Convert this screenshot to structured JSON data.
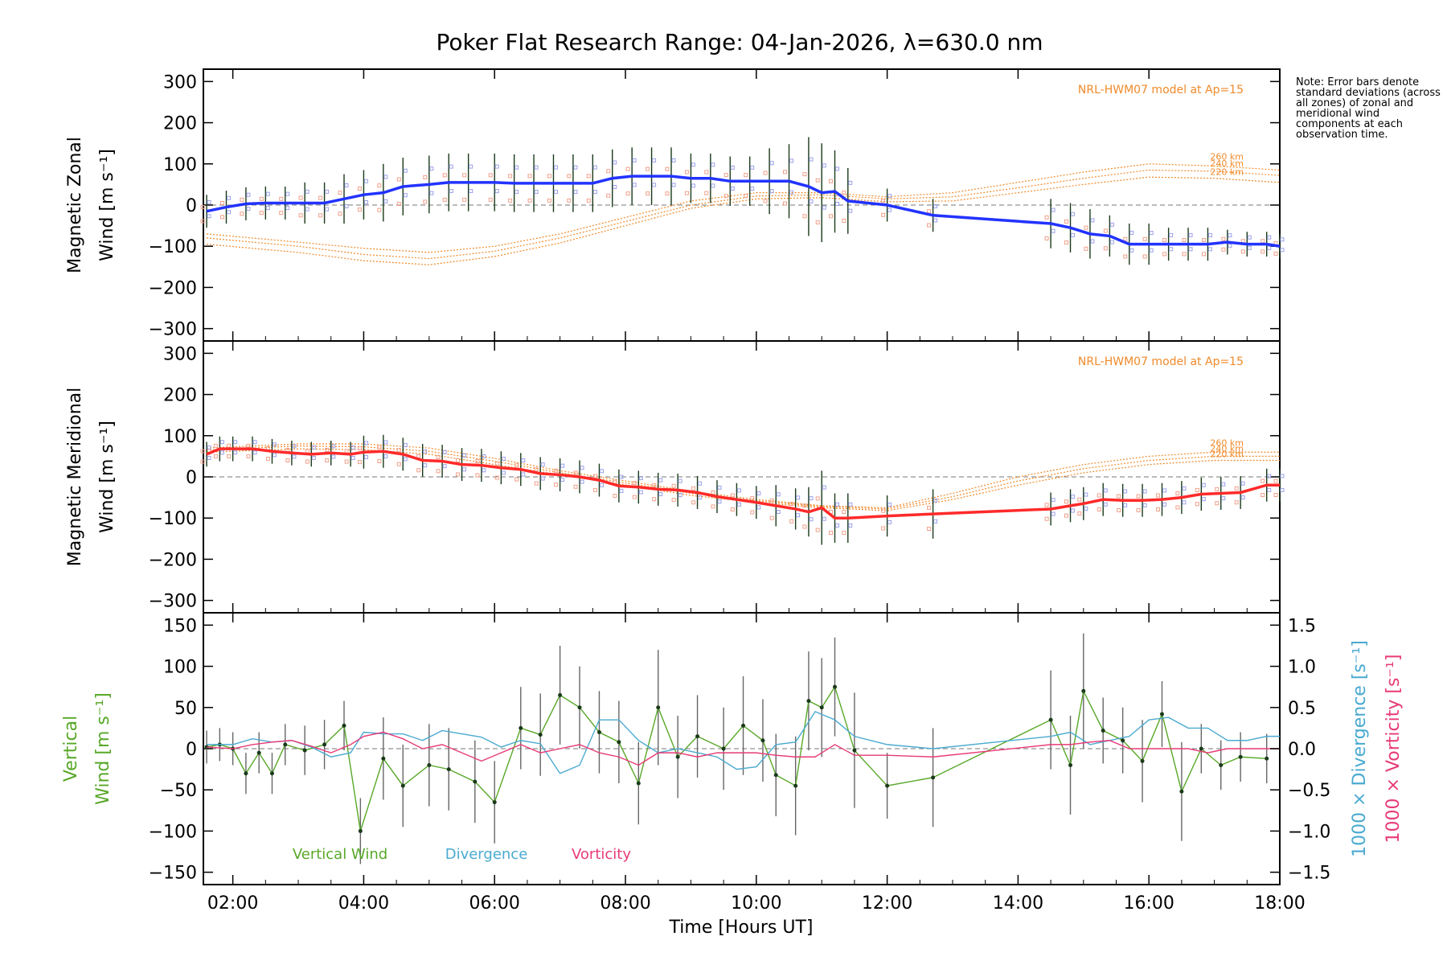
{
  "title": "Poker Flat Research Range: 04-Jan-2026, λ=630.0 nm",
  "note": "Note: Error bars denote standard deviations (across all zones) of zonal and meridional wind components at each observation time.",
  "chart_data": [
    {
      "type": "line",
      "panel": "zonal",
      "ylabel_line1": "Magnetic Zonal",
      "ylabel_line2": "Wind [m s⁻¹]",
      "ylim": [
        -330,
        330
      ],
      "yticks": [
        "300",
        "200",
        "100",
        "0",
        "−100",
        "−200",
        "−300"
      ],
      "ytick_values": [
        300,
        200,
        100,
        0,
        -100,
        -200,
        -300
      ],
      "model_label": "NRL-HWM07 model at Ap=15",
      "model_alt_labels": [
        "260 km",
        "240 km",
        "220 km"
      ],
      "model_series": [
        {
          "name": "260 km",
          "x": [
            1.6,
            3,
            4,
            5,
            6,
            7,
            8,
            9,
            10,
            11,
            12,
            13,
            14,
            15,
            16,
            17,
            18
          ],
          "values": [
            -70,
            -90,
            -105,
            -115,
            -100,
            -70,
            -30,
            10,
            30,
            30,
            20,
            30,
            55,
            80,
            100,
            95,
            85
          ]
        },
        {
          "name": "240 km",
          "x": [
            1.6,
            3,
            4,
            5,
            6,
            7,
            8,
            9,
            10,
            11,
            12,
            13,
            14,
            15,
            16,
            17,
            18
          ],
          "values": [
            -80,
            -100,
            -120,
            -130,
            -112,
            -80,
            -40,
            0,
            22,
            25,
            15,
            20,
            42,
            65,
            85,
            82,
            72
          ]
        },
        {
          "name": "220 km",
          "x": [
            1.6,
            3,
            4,
            5,
            6,
            7,
            8,
            9,
            10,
            11,
            12,
            13,
            14,
            15,
            16,
            17,
            18
          ],
          "values": [
            -95,
            -115,
            -135,
            -145,
            -125,
            -92,
            -50,
            -8,
            15,
            18,
            8,
            10,
            30,
            50,
            68,
            65,
            55
          ]
        }
      ],
      "series": [
        {
          "name": "Magnetic Zonal Wind",
          "color": "#2233ff",
          "x": [
            1.6,
            1.9,
            2.2,
            2.5,
            2.8,
            3.1,
            3.4,
            3.7,
            4.0,
            4.3,
            4.6,
            5.0,
            5.3,
            5.6,
            6.0,
            6.3,
            6.6,
            6.9,
            7.2,
            7.5,
            7.8,
            8.1,
            8.4,
            8.7,
            9.0,
            9.3,
            9.6,
            9.9,
            10.2,
            10.5,
            10.8,
            11.0,
            11.2,
            11.4,
            12.0,
            12.7,
            14.5,
            14.8,
            15.1,
            15.4,
            15.7,
            16.0,
            16.3,
            16.6,
            16.9,
            17.2,
            17.5,
            17.8,
            18.0
          ],
          "values": [
            -15,
            -5,
            3,
            5,
            5,
            5,
            5,
            15,
            25,
            30,
            45,
            50,
            55,
            55,
            55,
            53,
            53,
            53,
            53,
            53,
            65,
            70,
            70,
            70,
            65,
            65,
            58,
            58,
            58,
            58,
            45,
            30,
            33,
            10,
            0,
            -25,
            -45,
            -55,
            -70,
            -75,
            -95,
            -95,
            -95,
            -95,
            -95,
            -90,
            -95,
            -95,
            -100
          ],
          "errors": [
            40,
            40,
            40,
            40,
            40,
            50,
            50,
            60,
            60,
            70,
            70,
            70,
            70,
            70,
            70,
            70,
            70,
            70,
            70,
            70,
            70,
            70,
            70,
            70,
            60,
            60,
            60,
            60,
            80,
            90,
            120,
            120,
            100,
            80,
            40,
            40,
            60,
            60,
            60,
            50,
            50,
            50,
            40,
            40,
            40,
            30,
            30,
            30,
            30
          ]
        }
      ]
    },
    {
      "type": "line",
      "panel": "meridional",
      "ylabel_line1": "Magnetic Meridional",
      "ylabel_line2": "Wind [m s⁻¹]",
      "ylim": [
        -330,
        330
      ],
      "yticks": [
        "300",
        "200",
        "100",
        "0",
        "−100",
        "−200",
        "−300"
      ],
      "ytick_values": [
        300,
        200,
        100,
        0,
        -100,
        -200,
        -300
      ],
      "model_label": "NRL-HWM07 model at Ap=15",
      "model_alt_labels": [
        "260 km",
        "240 km",
        "220 km"
      ],
      "model_series": [
        {
          "name": "260 km",
          "x": [
            1.6,
            3,
            4,
            5,
            6,
            7,
            8,
            9,
            10,
            11,
            12,
            13,
            14,
            15,
            16,
            17,
            18
          ],
          "values": [
            70,
            80,
            80,
            70,
            45,
            15,
            -10,
            -35,
            -55,
            -70,
            -75,
            -40,
            0,
            30,
            50,
            60,
            60
          ]
        },
        {
          "name": "240 km",
          "x": [
            1.6,
            3,
            4,
            5,
            6,
            7,
            8,
            9,
            10,
            11,
            12,
            13,
            14,
            15,
            16,
            17,
            18
          ],
          "values": [
            65,
            75,
            73,
            62,
            38,
            10,
            -15,
            -40,
            -58,
            -72,
            -78,
            -48,
            -10,
            20,
            40,
            50,
            50
          ]
        },
        {
          "name": "220 km",
          "x": [
            1.6,
            3,
            4,
            5,
            6,
            7,
            8,
            9,
            10,
            11,
            12,
            13,
            14,
            15,
            16,
            17,
            18
          ],
          "values": [
            60,
            68,
            66,
            55,
            30,
            5,
            -20,
            -45,
            -62,
            -75,
            -82,
            -55,
            -20,
            10,
            30,
            40,
            40
          ]
        }
      ],
      "series": [
        {
          "name": "Magnetic Meridional Wind",
          "color": "#ff2a2a",
          "x": [
            1.6,
            1.8,
            2.0,
            2.3,
            2.6,
            2.9,
            3.2,
            3.5,
            3.8,
            4.0,
            4.3,
            4.6,
            4.9,
            5.2,
            5.5,
            5.8,
            6.1,
            6.4,
            6.7,
            7.0,
            7.3,
            7.6,
            7.9,
            8.2,
            8.5,
            8.8,
            9.1,
            9.4,
            9.7,
            10.0,
            10.3,
            10.6,
            10.8,
            11.0,
            11.2,
            11.4,
            12.0,
            12.7,
            14.5,
            14.8,
            15.0,
            15.3,
            15.6,
            15.9,
            16.2,
            16.5,
            16.8,
            17.1,
            17.4,
            17.8,
            18.0
          ],
          "values": [
            55,
            68,
            68,
            68,
            62,
            58,
            55,
            58,
            55,
            60,
            62,
            55,
            40,
            38,
            30,
            28,
            22,
            18,
            8,
            5,
            0,
            -8,
            -22,
            -25,
            -30,
            -32,
            -38,
            -48,
            -55,
            -62,
            -70,
            -78,
            -85,
            -75,
            -100,
            -100,
            -95,
            -90,
            -78,
            -70,
            -65,
            -55,
            -57,
            -57,
            -55,
            -50,
            -42,
            -40,
            -38,
            -20,
            -20
          ],
          "errors": [
            30,
            30,
            30,
            30,
            30,
            30,
            30,
            30,
            30,
            40,
            40,
            40,
            40,
            40,
            40,
            40,
            40,
            40,
            40,
            40,
            40,
            40,
            40,
            40,
            40,
            40,
            40,
            40,
            40,
            40,
            50,
            50,
            60,
            90,
            60,
            60,
            50,
            60,
            40,
            40,
            40,
            40,
            40,
            40,
            40,
            40,
            40,
            40,
            40,
            40,
            40
          ]
        }
      ]
    },
    {
      "type": "line",
      "panel": "vertical",
      "ylabel_line1": "Vertical",
      "ylabel_line2": "Wind [m s⁻¹]",
      "ylim": [
        -165,
        165
      ],
      "yticks": [
        "150",
        "100",
        "50",
        "0",
        "−50",
        "−100",
        "−150"
      ],
      "ytick_values": [
        150,
        100,
        50,
        0,
        -50,
        -100,
        -150
      ],
      "y2label1": "1000 × Divergence [s⁻¹]",
      "y2label2": "1000 × Vorticity [s⁻¹]",
      "y2lim": [
        -1.65,
        1.65
      ],
      "y2ticks": [
        "1.5",
        "1.0",
        "0.5",
        "0.0",
        "−0.5",
        "−1.0",
        "−1.5"
      ],
      "y2tick_values": [
        1.5,
        1.0,
        0.5,
        0.0,
        -0.5,
        -1.0,
        -1.5
      ],
      "legend": [
        "Vertical Wind",
        "Divergence",
        "Vorticity"
      ],
      "series": [
        {
          "name": "Vertical Wind",
          "color": "#58a828",
          "x": [
            1.6,
            1.8,
            2.0,
            2.2,
            2.4,
            2.6,
            2.8,
            3.1,
            3.4,
            3.7,
            3.95,
            4.3,
            4.6,
            5.0,
            5.3,
            5.7,
            6.0,
            6.4,
            6.7,
            7.0,
            7.3,
            7.6,
            7.9,
            8.2,
            8.5,
            8.8,
            9.1,
            9.5,
            9.8,
            10.1,
            10.3,
            10.6,
            10.8,
            11.0,
            11.2,
            11.5,
            12.0,
            12.7,
            14.5,
            14.8,
            15.0,
            15.3,
            15.6,
            15.9,
            16.2,
            16.5,
            16.8,
            17.1,
            17.4,
            17.8
          ],
          "values": [
            2,
            5,
            0,
            -30,
            -5,
            -30,
            5,
            -2,
            5,
            28,
            -100,
            -12,
            -45,
            -20,
            -25,
            -40,
            -65,
            25,
            17,
            65,
            50,
            20,
            8,
            -42,
            50,
            -10,
            15,
            0,
            28,
            10,
            -32,
            -45,
            58,
            50,
            75,
            -2,
            -45,
            -35,
            35,
            -20,
            70,
            22,
            10,
            -15,
            42,
            -52,
            0,
            -20,
            -10,
            -12
          ],
          "errors": [
            20,
            20,
            20,
            25,
            25,
            25,
            25,
            30,
            30,
            30,
            40,
            50,
            50,
            50,
            50,
            50,
            50,
            50,
            50,
            60,
            50,
            50,
            50,
            50,
            70,
            50,
            50,
            50,
            60,
            50,
            50,
            60,
            60,
            60,
            60,
            70,
            40,
            60,
            60,
            60,
            70,
            40,
            40,
            50,
            40,
            60,
            30,
            30,
            30,
            30
          ]
        },
        {
          "name": "Divergence",
          "color": "#4aaad0",
          "x": [
            1.6,
            2.0,
            2.3,
            2.6,
            2.9,
            3.2,
            3.5,
            3.8,
            4.0,
            4.3,
            4.6,
            4.9,
            5.2,
            5.5,
            5.8,
            6.1,
            6.4,
            6.7,
            7.0,
            7.3,
            7.6,
            7.9,
            8.2,
            8.5,
            8.8,
            9.1,
            9.4,
            9.7,
            10.0,
            10.3,
            10.6,
            10.9,
            11.2,
            11.5,
            12.0,
            12.7,
            14.5,
            14.8,
            15.1,
            15.4,
            15.7,
            16.0,
            16.3,
            16.6,
            16.9,
            17.2,
            17.5,
            17.8,
            18.0
          ],
          "values": [
            0.05,
            0.05,
            0.12,
            0.08,
            0.1,
            0.02,
            -0.1,
            -0.05,
            0.2,
            0.18,
            0.18,
            0.1,
            0.22,
            0.18,
            0.14,
            0.02,
            0.1,
            0.06,
            -0.3,
            -0.2,
            0.35,
            0.35,
            0.1,
            -0.05,
            0.0,
            -0.05,
            -0.1,
            -0.25,
            -0.22,
            0.05,
            0.08,
            0.45,
            0.35,
            0.15,
            0.05,
            0.0,
            0.15,
            0.2,
            0.05,
            0.1,
            0.15,
            0.35,
            0.38,
            0.25,
            0.25,
            0.1,
            0.1,
            0.15,
            0.15
          ]
        },
        {
          "name": "Vorticity",
          "color": "#e83a78",
          "x": [
            1.6,
            2.0,
            2.3,
            2.6,
            2.9,
            3.2,
            3.5,
            3.8,
            4.0,
            4.3,
            4.6,
            4.9,
            5.2,
            5.5,
            5.8,
            6.1,
            6.4,
            6.7,
            7.0,
            7.3,
            7.6,
            7.9,
            8.2,
            8.5,
            8.8,
            9.1,
            9.4,
            9.7,
            10.0,
            10.3,
            10.6,
            10.9,
            11.2,
            11.5,
            12.0,
            12.7,
            14.5,
            14.8,
            15.1,
            15.4,
            15.7,
            16.0,
            16.3,
            16.6,
            16.9,
            17.2,
            17.5,
            17.8,
            18.0
          ],
          "values": [
            0.02,
            0.0,
            0.05,
            0.08,
            0.1,
            0.03,
            -0.05,
            0.05,
            0.15,
            0.2,
            0.12,
            0.0,
            0.05,
            -0.05,
            -0.15,
            -0.05,
            0.05,
            -0.05,
            0.0,
            0.05,
            -0.05,
            -0.1,
            -0.2,
            -0.05,
            -0.05,
            -0.1,
            -0.05,
            -0.05,
            -0.05,
            -0.08,
            -0.1,
            -0.1,
            0.05,
            -0.08,
            -0.08,
            -0.1,
            0.05,
            0.05,
            0.08,
            0.1,
            0.0,
            0.0,
            0.0,
            0.0,
            -0.05,
            0.0,
            0.0,
            0.0,
            0.0
          ]
        }
      ]
    }
  ],
  "xaxis": {
    "label": "Time [Hours UT]",
    "xlim": [
      1.55,
      18.0
    ],
    "tick_labels": [
      "02:00",
      "04:00",
      "06:00",
      "08:00",
      "10:00",
      "12:00",
      "14:00",
      "16:00",
      "18:00"
    ],
    "tick_values": [
      2,
      4,
      6,
      8,
      10,
      12,
      14,
      16,
      18
    ]
  }
}
